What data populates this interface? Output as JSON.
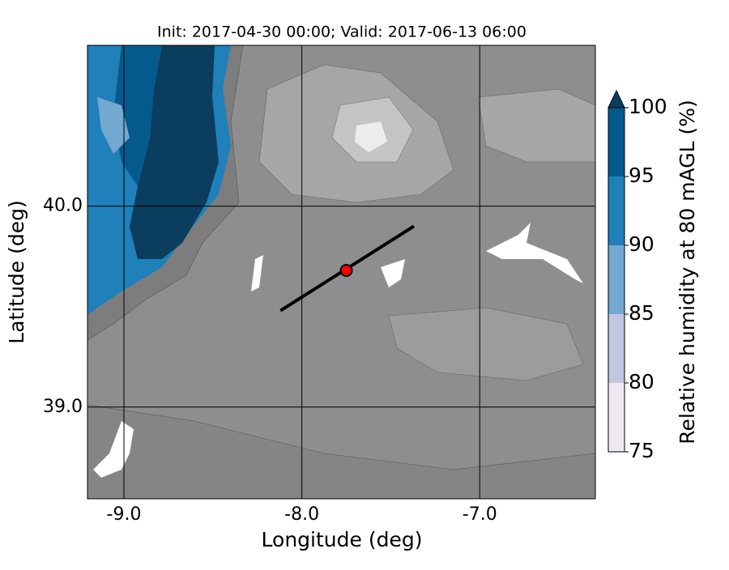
{
  "map": {
    "title": "Init: 2017-04-30 00:00; Valid: 2017-06-13 06:00",
    "xlabel": "Longitude (deg)",
    "ylabel": "Latitude (deg)",
    "xlim": [
      -9.205,
      -6.35
    ],
    "ylim": [
      38.544,
      40.8
    ],
    "xticks": [
      {
        "value": -9,
        "label": "-9.0"
      },
      {
        "value": -8,
        "label": "-8.0"
      },
      {
        "value": -7,
        "label": "-7.0"
      }
    ],
    "yticks": [
      {
        "value": 39,
        "label": "39.0"
      },
      {
        "value": 40,
        "label": "40.0"
      }
    ],
    "transect": {
      "lon": [
        -8.12,
        -7.37
      ],
      "lat": [
        39.48,
        39.9
      ]
    },
    "point": {
      "lon": -7.75,
      "lat": 39.68,
      "color": "#ff0000"
    },
    "colorbar": {
      "label": "Relative humidity at 80 mAGL (%)",
      "levels": [
        75,
        80,
        85,
        90,
        95,
        100
      ],
      "colors": [
        "#efe9f3",
        "#bfc8e0",
        "#73a8d0",
        "#1f80ba",
        "#045a8d"
      ],
      "extend_color": "#0b3d5e"
    }
  }
}
